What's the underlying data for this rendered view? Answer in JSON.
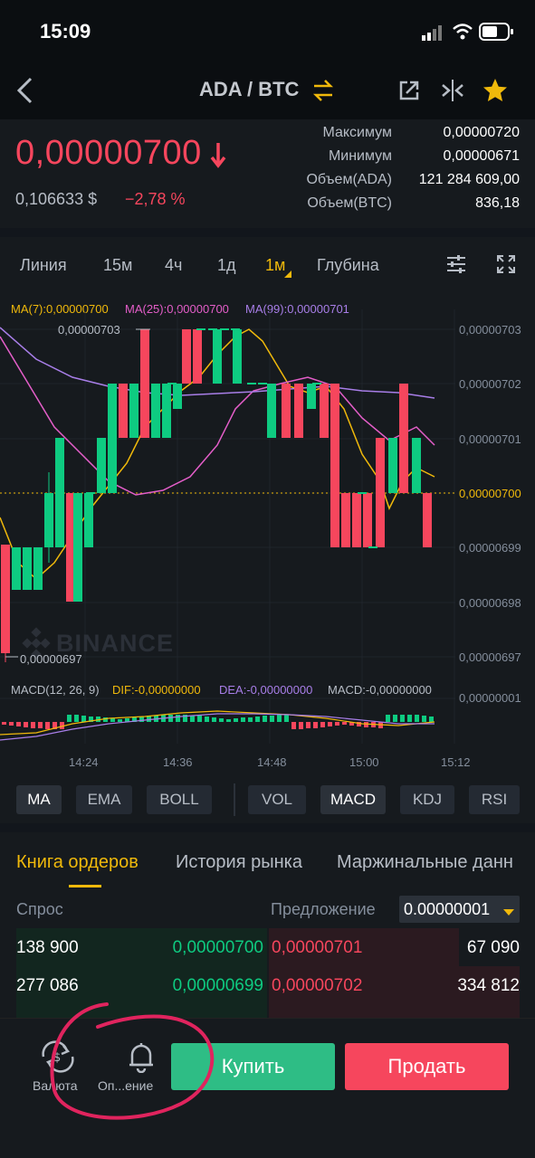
{
  "status": {
    "time": "15:09"
  },
  "header": {
    "pair": "ADA / BTC"
  },
  "price": {
    "last": "0,00000700",
    "usd": "0,106633 $",
    "change": "−2,78 %"
  },
  "stats": [
    {
      "label": "Максимум",
      "value": "0,00000720"
    },
    {
      "label": "Минимум",
      "value": "0,00000671"
    },
    {
      "label": "Объем(ADA)",
      "value": "121 284 609,00"
    },
    {
      "label": "Объем(BTC)",
      "value": "836,18"
    }
  ],
  "timeframes": [
    "Линия",
    "15м",
    "4ч",
    "1д",
    "1м",
    "Глубина"
  ],
  "active_timeframe": "1м",
  "chart": {
    "ma7": "MA(7):0,00000700",
    "ma25": "MA(25):0,00000700",
    "ma99": "MA(99):0,00000701",
    "hi_marker": "0,00000703",
    "lo_marker": "0,00000697",
    "watermark": "BINANCE",
    "yticks": [
      "0,00000703",
      "0,00000702",
      "0,00000701",
      "0,00000700",
      "0,00000699",
      "0,00000698",
      "0,00000697"
    ],
    "macd_title": "MACD(12, 26, 9)",
    "dif": "DIF:-0,00000000",
    "dea": "DEA:-0,00000000",
    "macd": "MACD:-0,00000000",
    "macd_ytick": "0,00000001",
    "xticks": [
      "14:24",
      "14:36",
      "14:48",
      "15:00",
      "15:12"
    ]
  },
  "chart_data": {
    "type": "candlestick",
    "ylim": [
      6.97e-06,
      7.03e-06
    ],
    "current_price": 7e-06,
    "colors": {
      "up": "#0ecb81",
      "down": "#f6465d",
      "ma7": "#f0b90b",
      "ma25": "#e45ec9",
      "ma99": "#a87ee8"
    }
  },
  "indicators": {
    "main": [
      "MA",
      "EMA",
      "BOLL"
    ],
    "sub": [
      "VOL",
      "MACD",
      "KDJ",
      "RSI"
    ]
  },
  "orderbook": {
    "tabs": [
      "Книга ордеров",
      "История рынка",
      "Маржинальные данн"
    ],
    "bid_label": "Спрос",
    "ask_label": "Предложение",
    "precision": "0.00000001",
    "rows": [
      {
        "bid_qty": "138 900",
        "bid_price": "0,00000700",
        "ask_price": "0,00000701",
        "ask_qty": "67 090"
      },
      {
        "bid_qty": "277 086",
        "bid_price": "0,00000699",
        "ask_price": "0,00000702",
        "ask_qty": "334 812"
      }
    ]
  },
  "bottom": {
    "currency_label": "Валюта",
    "alert_label": "Оп...ение",
    "buy": "Купить",
    "sell": "Продать"
  }
}
